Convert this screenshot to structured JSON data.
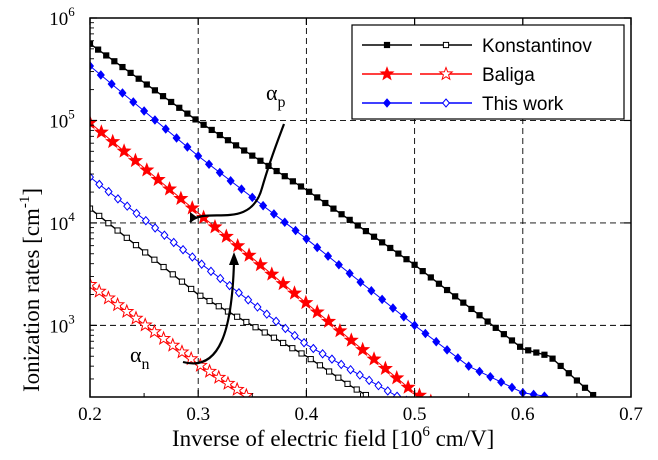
{
  "chart_data": {
    "type": "line",
    "xlabel": "Inverse of electric field [10",
    "xlabel_sup": "6",
    "xlabel_tail": " cm/V]",
    "ylabel": "Ionization rates [cm",
    "ylabel_sup": "-1",
    "ylabel_tail": "]",
    "xlim": [
      0.2,
      0.7
    ],
    "ylim": [
      200,
      1000000
    ],
    "yscale": "log",
    "grid": "dashed",
    "legend_position": "top-right",
    "x_ticks": [
      "0.2",
      "0.3",
      "0.4",
      "0.5",
      "0.6",
      "0.7"
    ],
    "y_ticks": [
      {
        "base": "10",
        "exp": "3"
      },
      {
        "base": "10",
        "exp": "4"
      },
      {
        "base": "10",
        "exp": "5"
      },
      {
        "base": "10",
        "exp": "6"
      }
    ],
    "annotations": [
      {
        "text": "α",
        "sub": "p",
        "x": 0.29,
        "y": 62000
      },
      {
        "text": "α",
        "sub": "n",
        "x": 0.165,
        "y": 480
      }
    ],
    "series": [
      {
        "name": "Konstantinov",
        "carrier": "p",
        "color": "#000000",
        "marker": "square-filled",
        "x": [
          0.2,
          0.3,
          0.4,
          0.5,
          0.6,
          0.625,
          0.667
        ],
        "y": [
          560000,
          98000,
          21000,
          3900,
          590,
          500,
          200
        ]
      },
      {
        "name": "Konstantinov",
        "carrier": "n",
        "color": "#000000",
        "marker": "square-open",
        "x": [
          0.2,
          0.3,
          0.4,
          0.44,
          0.458
        ],
        "y": [
          13800,
          2000,
          500,
          260,
          200
        ]
      },
      {
        "name": "Baliga",
        "carrier": "p",
        "color": "#ff0000",
        "marker": "star-filled",
        "x": [
          0.2,
          0.3,
          0.4,
          0.5,
          0.535
        ],
        "y": [
          95000,
          12500,
          1650,
          220,
          140
        ]
      },
      {
        "name": "Baliga",
        "carrier": "n",
        "color": "#ff0000",
        "marker": "star-open",
        "x": [
          0.2,
          0.3,
          0.345
        ],
        "y": [
          2500,
          420,
          205
        ]
      },
      {
        "name": "This work",
        "carrier": "p",
        "color": "#0000ff",
        "marker": "diamond-filled",
        "x": [
          0.2,
          0.3,
          0.4,
          0.5,
          0.55,
          0.6,
          0.625
        ],
        "y": [
          340000,
          45000,
          7000,
          1000,
          400,
          220,
          200
        ]
      },
      {
        "name": "This work",
        "carrier": "n",
        "color": "#0000ff",
        "marker": "diamond-open",
        "x": [
          0.2,
          0.3,
          0.4,
          0.485,
          0.535
        ],
        "y": [
          28000,
          4200,
          650,
          200,
          120
        ]
      }
    ],
    "legend": [
      {
        "label": "Konstantinov",
        "color": "#000000",
        "marker_filled": "square-filled",
        "marker_open": "square-open"
      },
      {
        "label": "Baliga",
        "color": "#ff0000",
        "marker_filled": "star-filled",
        "marker_open": "star-open"
      },
      {
        "label": "This work",
        "color": "#0000ff",
        "marker_filled": "diamond-filled",
        "marker_open": "diamond-open"
      }
    ]
  }
}
